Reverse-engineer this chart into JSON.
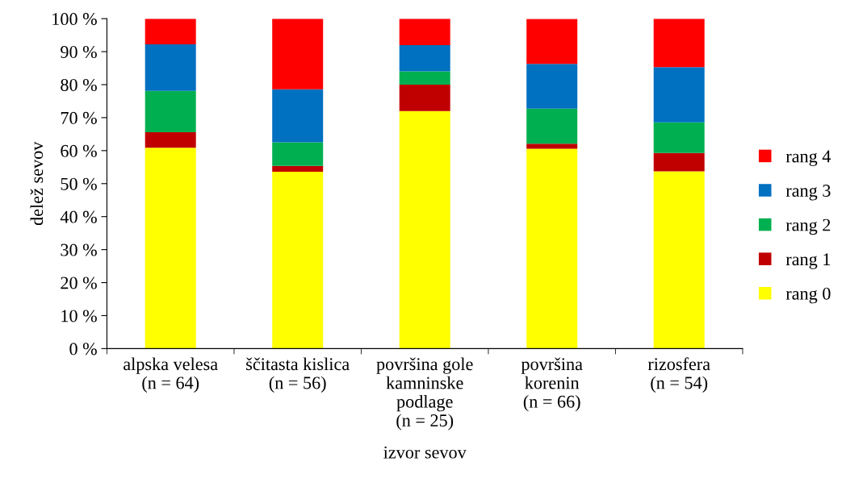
{
  "chart_data": {
    "type": "bar",
    "stacked": true,
    "xlabel": "izvor sevov",
    "ylabel": "delež sevov",
    "categories": [
      "alpska velesa\n(n = 64)",
      "ščitasta kislica\n(n = 56)",
      "površina gole\nkamninske\npodlage\n(n = 25)",
      "površina\nkorenin\n(n = 66)",
      "rizosfera\n(n = 54)"
    ],
    "series": [
      {
        "name": "rang 0",
        "color": "#ffff00",
        "values": [
          60.9,
          53.6,
          72,
          60.6,
          53.7
        ]
      },
      {
        "name": "rang 1",
        "color": "#c00000",
        "values": [
          4.7,
          1.8,
          8,
          1.5,
          5.6
        ]
      },
      {
        "name": "rang 2",
        "color": "#00b050",
        "values": [
          12.5,
          7.1,
          4,
          10.6,
          9.3
        ]
      },
      {
        "name": "rang 3",
        "color": "#0070c0",
        "values": [
          14.1,
          16.1,
          8,
          13.6,
          16.7
        ]
      },
      {
        "name": "rang 4",
        "color": "#ff0000",
        "values": [
          7.8,
          21.4,
          8,
          13.6,
          14.7
        ]
      }
    ],
    "ylim": [
      0,
      100
    ],
    "yticks": [
      {
        "value": 0,
        "label": "0 %"
      },
      {
        "value": 10,
        "label": "10 %"
      },
      {
        "value": 20,
        "label": "20 %"
      },
      {
        "value": 30,
        "label": "30 %"
      },
      {
        "value": 40,
        "label": "40 %"
      },
      {
        "value": 50,
        "label": "50 %"
      },
      {
        "value": 60,
        "label": "60 %"
      },
      {
        "value": 70,
        "label": "70 %"
      },
      {
        "value": 80,
        "label": "80 %"
      },
      {
        "value": 90,
        "label": "90 %"
      },
      {
        "value": 100,
        "label": "100 %"
      }
    ],
    "grid": false,
    "legend": "right"
  }
}
